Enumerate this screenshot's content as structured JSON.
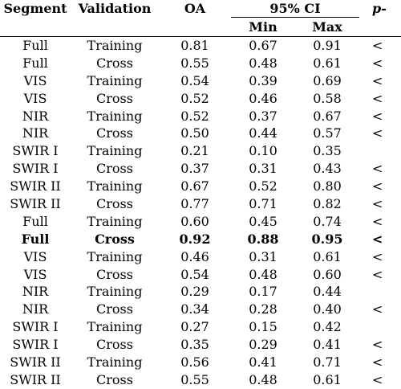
{
  "header": {
    "segment": "Segment",
    "validation": "Validation",
    "oa": "OA",
    "ci": "95% CI",
    "min": "Min",
    "max": "Max",
    "p": "p-"
  },
  "rows": [
    {
      "segment": "Full",
      "validation": "Training",
      "oa": "0.81",
      "min": "0.67",
      "max": "0.91",
      "p": "<"
    },
    {
      "segment": "Full",
      "validation": "Cross",
      "oa": "0.55",
      "min": "0.48",
      "max": "0.61",
      "p": "<"
    },
    {
      "segment": "VIS",
      "validation": "Training",
      "oa": "0.54",
      "min": "0.39",
      "max": "0.69",
      "p": "<"
    },
    {
      "segment": "VIS",
      "validation": "Cross",
      "oa": "0.52",
      "min": "0.46",
      "max": "0.58",
      "p": "<"
    },
    {
      "segment": "NIR",
      "validation": "Training",
      "oa": "0.52",
      "min": "0.37",
      "max": "0.67",
      "p": "<"
    },
    {
      "segment": "NIR",
      "validation": "Cross",
      "oa": "0.50",
      "min": "0.44",
      "max": "0.57",
      "p": "<"
    },
    {
      "segment": "SWIR I",
      "validation": "Training",
      "oa": "0.21",
      "min": "0.10",
      "max": "0.35",
      "p": ""
    },
    {
      "segment": "SWIR I",
      "validation": "Cross",
      "oa": "0.37",
      "min": "0.31",
      "max": "0.43",
      "p": "<"
    },
    {
      "segment": "SWIR II",
      "validation": "Training",
      "oa": "0.67",
      "min": "0.52",
      "max": "0.80",
      "p": "<"
    },
    {
      "segment": "SWIR II",
      "validation": "Cross",
      "oa": "0.77",
      "min": "0.71",
      "max": "0.82",
      "p": "<"
    },
    {
      "segment": "Full",
      "validation": "Training",
      "oa": "0.60",
      "min": "0.45",
      "max": "0.74",
      "p": "<"
    },
    {
      "segment": "Full",
      "validation": "Cross",
      "oa": "0.92",
      "min": "0.88",
      "max": "0.95",
      "p": "<",
      "bold": true
    },
    {
      "segment": "VIS",
      "validation": "Training",
      "oa": "0.46",
      "min": "0.31",
      "max": "0.61",
      "p": "<"
    },
    {
      "segment": "VIS",
      "validation": "Cross",
      "oa": "0.54",
      "min": "0.48",
      "max": "0.60",
      "p": "<"
    },
    {
      "segment": "NIR",
      "validation": "Training",
      "oa": "0.29",
      "min": "0.17",
      "max": "0.44",
      "p": ""
    },
    {
      "segment": "NIR",
      "validation": "Cross",
      "oa": "0.34",
      "min": "0.28",
      "max": "0.40",
      "p": "<"
    },
    {
      "segment": "SWIR I",
      "validation": "Training",
      "oa": "0.27",
      "min": "0.15",
      "max": "0.42",
      "p": ""
    },
    {
      "segment": "SWIR I",
      "validation": "Cross",
      "oa": "0.35",
      "min": "0.29",
      "max": "0.41",
      "p": "<"
    },
    {
      "segment": "SWIR II",
      "validation": "Training",
      "oa": "0.56",
      "min": "0.41",
      "max": "0.71",
      "p": "<"
    },
    {
      "segment": "SWIR II",
      "validation": "Cross",
      "oa": "0.55",
      "min": "0.48",
      "max": "0.61",
      "p": "<"
    }
  ]
}
